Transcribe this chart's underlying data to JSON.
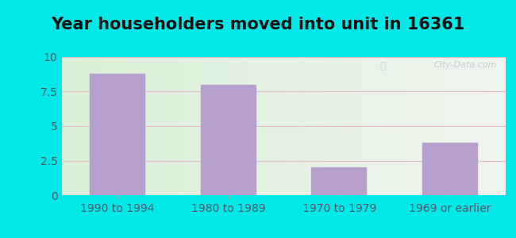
{
  "title": "Year householders moved into unit in 16361",
  "categories": [
    "1990 to 1994",
    "1980 to 1989",
    "1970 to 1979",
    "1969 or earlier"
  ],
  "values": [
    8.8,
    8.0,
    2.0,
    3.8
  ],
  "bar_color": "#b8a0cc",
  "bar_edgecolor": "#b8a0cc",
  "ylim": [
    0,
    10
  ],
  "yticks": [
    0,
    2.5,
    5,
    7.5,
    10
  ],
  "outer_bg": "#00e8e8",
  "plot_bg_left": "#daf0d8",
  "plot_bg_right": "#f0f5ee",
  "grid_color": "#e8b8c8",
  "title_fontsize": 15,
  "tick_fontsize": 10,
  "watermark": "City-Data.com"
}
